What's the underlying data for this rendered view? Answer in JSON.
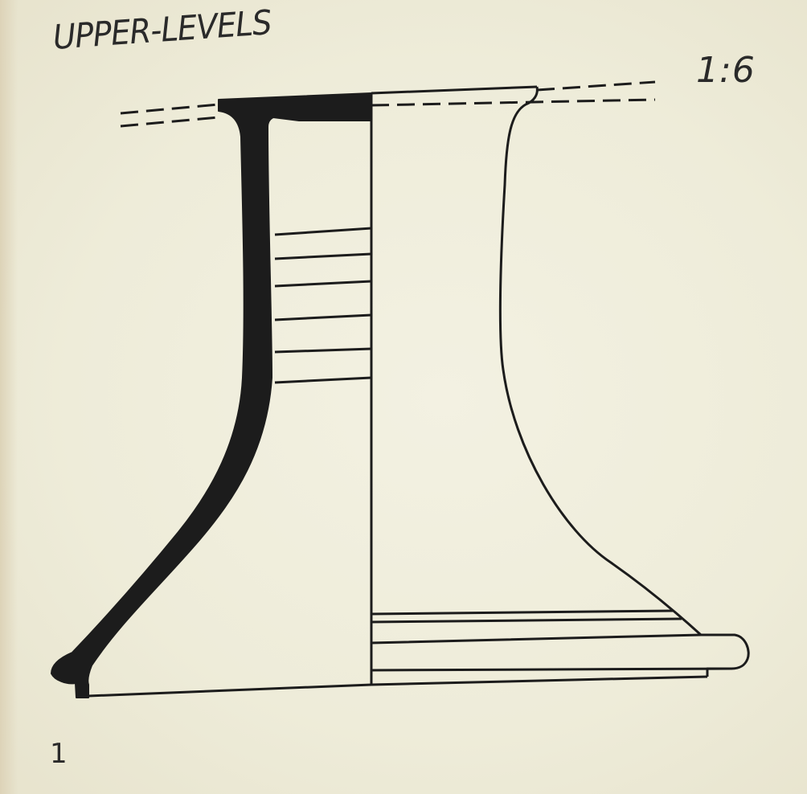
{
  "figure": {
    "title": "UPPER-LEVELS",
    "scale": "1:6",
    "number": "1"
  },
  "colors": {
    "paper": "#efeddc",
    "ink": "#1c1c1c"
  }
}
